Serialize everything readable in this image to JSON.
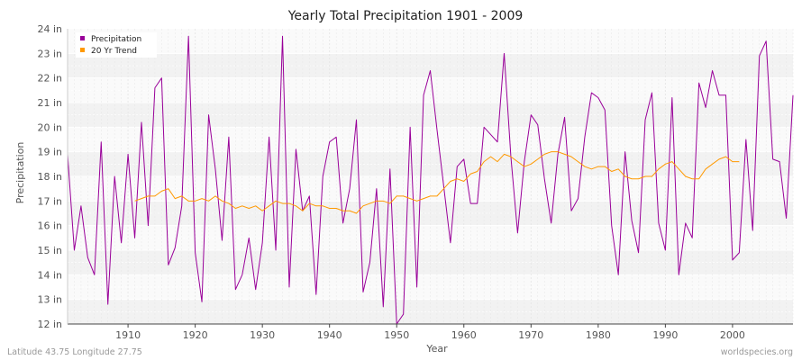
{
  "chart_data": {
    "type": "line",
    "title": "Yearly Total Precipitation 1901 - 2009",
    "xlabel": "Year",
    "ylabel": "Precipitation",
    "xlim": [
      1901,
      2009
    ],
    "ylim": [
      12,
      24
    ],
    "x_ticks": [
      1910,
      1920,
      1930,
      1940,
      1950,
      1960,
      1970,
      1980,
      1990,
      2000
    ],
    "y_ticks": [
      {
        "value": 12,
        "label": "12 in"
      },
      {
        "value": 13,
        "label": "13 in"
      },
      {
        "value": 14,
        "label": "14 in"
      },
      {
        "value": 15,
        "label": "15 in"
      },
      {
        "value": 16,
        "label": "16 in"
      },
      {
        "value": 17,
        "label": "17 in"
      },
      {
        "value": 18,
        "label": "18 in"
      },
      {
        "value": 19,
        "label": "19 in"
      },
      {
        "value": 20,
        "label": "20 in"
      },
      {
        "value": 21,
        "label": "21 in"
      },
      {
        "value": 22,
        "label": "22 in"
      },
      {
        "value": 23,
        "label": "23 in"
      },
      {
        "value": 24,
        "label": "24 in"
      }
    ],
    "grid": true,
    "legend_position": "top-left",
    "series": [
      {
        "name": "Precipitation",
        "color": "#990099",
        "x_start": 1901,
        "values": [
          18.9,
          15.0,
          16.8,
          14.7,
          14.0,
          19.4,
          12.8,
          18.0,
          15.3,
          18.9,
          15.5,
          20.2,
          16.0,
          21.6,
          22.0,
          14.4,
          15.1,
          16.8,
          23.7,
          14.9,
          12.9,
          20.5,
          18.3,
          15.4,
          19.6,
          13.4,
          14.0,
          15.5,
          13.4,
          15.3,
          19.6,
          15.0,
          23.7,
          13.5,
          19.1,
          16.6,
          17.2,
          13.2,
          18.0,
          19.4,
          19.6,
          16.1,
          17.5,
          20.3,
          13.3,
          14.5,
          17.5,
          12.7,
          18.3,
          12.0,
          12.4,
          20.0,
          13.5,
          21.3,
          22.3,
          19.9,
          17.6,
          15.3,
          18.4,
          18.7,
          16.9,
          16.9,
          20.0,
          19.7,
          19.4,
          23.0,
          18.8,
          15.7,
          18.6,
          20.5,
          20.1,
          17.9,
          16.1,
          18.9,
          20.4,
          16.6,
          17.1,
          19.6,
          21.4,
          21.2,
          20.7,
          16.0,
          14.0,
          19.0,
          16.2,
          14.9,
          20.3,
          21.4,
          16.1,
          15.0,
          21.2,
          14.0,
          16.1,
          15.5,
          21.8,
          20.8,
          22.3,
          21.3,
          21.3,
          14.6,
          14.9,
          19.5,
          15.8,
          22.9,
          23.5,
          18.7,
          18.6,
          16.3,
          21.3
        ]
      },
      {
        "name": "20 Yr Trend",
        "color": "#ff9900",
        "x_start": 1911,
        "values": [
          17.0,
          17.1,
          17.2,
          17.2,
          17.4,
          17.5,
          17.1,
          17.2,
          17.0,
          17.0,
          17.1,
          17.0,
          17.2,
          17.0,
          16.9,
          16.7,
          16.8,
          16.7,
          16.8,
          16.6,
          16.8,
          17.0,
          16.9,
          16.9,
          16.8,
          16.6,
          16.9,
          16.8,
          16.8,
          16.7,
          16.7,
          16.6,
          16.6,
          16.5,
          16.8,
          16.9,
          17.0,
          17.0,
          16.9,
          17.2,
          17.2,
          17.1,
          17.0,
          17.1,
          17.2,
          17.2,
          17.5,
          17.8,
          17.9,
          17.8,
          18.1,
          18.2,
          18.6,
          18.8,
          18.6,
          18.9,
          18.8,
          18.6,
          18.4,
          18.5,
          18.7,
          18.9,
          19.0,
          19.0,
          18.9,
          18.8,
          18.6,
          18.4,
          18.3,
          18.4,
          18.4,
          18.2,
          18.3,
          18.0,
          17.9,
          17.9,
          18.0,
          18.0,
          18.3,
          18.5,
          18.6,
          18.3,
          18.0,
          17.9,
          17.9,
          18.3,
          18.5,
          18.7,
          18.8,
          18.6,
          18.6
        ]
      }
    ]
  },
  "footer": {
    "left": "Latitude 43.75 Longitude 27.75",
    "right": "worldspecies.org"
  }
}
